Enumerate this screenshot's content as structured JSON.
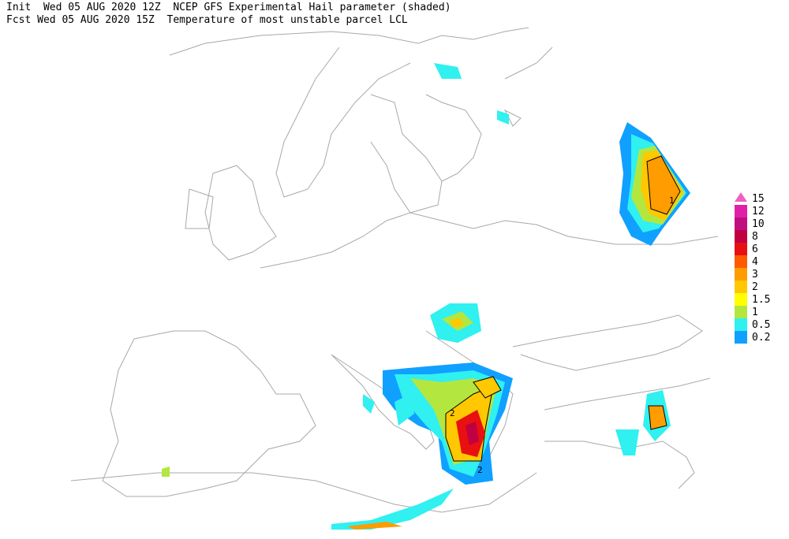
{
  "header": {
    "line1": "Init  Wed 05 AUG 2020 12Z  NCEP GFS Experimental Hail parameter (shaded)",
    "line2": "Fcst Wed 05 AUG 2020 15Z  Temperature of most unstable parcel LCL"
  },
  "legend": [
    {
      "label": "15",
      "color": "#f060c0"
    },
    {
      "label": "12",
      "color": "#e020a8"
    },
    {
      "label": "10",
      "color": "#c01080"
    },
    {
      "label": "8",
      "color": "#c00040"
    },
    {
      "label": "6",
      "color": "#e81010"
    },
    {
      "label": "4",
      "color": "#ff5a00"
    },
    {
      "label": "3",
      "color": "#ff9c00"
    },
    {
      "label": "2",
      "color": "#ffc800"
    },
    {
      "label": "1.5",
      "color": "#ffff00"
    },
    {
      "label": "1",
      "color": "#b4e640"
    },
    {
      "label": "0.5",
      "color": "#30f0f0"
    },
    {
      "label": "0.2",
      "color": "#10a0ff"
    }
  ],
  "contour_labels": [
    "2",
    "2",
    "1"
  ]
}
